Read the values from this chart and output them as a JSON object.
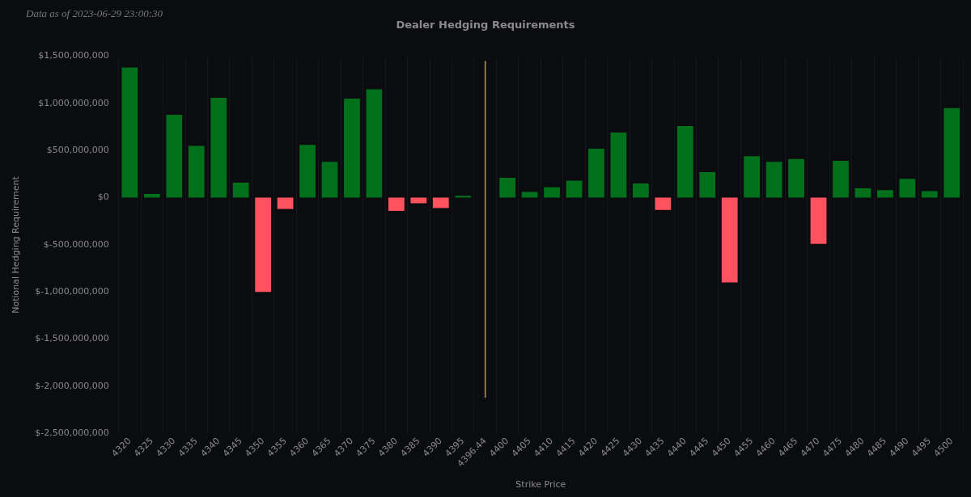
{
  "chart_data": {
    "type": "bar",
    "title": "Dealer Hedging Requirements",
    "xlabel": "Strike Price",
    "ylabel": "Notional Hedging Requirement",
    "annotations": [
      "Data as of 2023-06-29 23:00:30"
    ],
    "categories": [
      "4320",
      "4325",
      "4330",
      "4335",
      "4340",
      "4345",
      "4350",
      "4355",
      "4360",
      "4365",
      "4370",
      "4375",
      "4380",
      "4385",
      "4390",
      "4395",
      "4396.44",
      "4400",
      "4405",
      "4410",
      "4415",
      "4420",
      "4425",
      "4430",
      "4435",
      "4440",
      "4445",
      "4450",
      "4455",
      "4460",
      "4465",
      "4470",
      "4475",
      "4480",
      "4485",
      "4490",
      "4495",
      "4500"
    ],
    "values": [
      1380000000,
      40000000,
      880000000,
      550000000,
      1060000000,
      160000000,
      -1000000000,
      -120000000,
      560000000,
      380000000,
      1050000000,
      1150000000,
      -140000000,
      -60000000,
      -110000000,
      20000000,
      null,
      210000000,
      60000000,
      110000000,
      180000000,
      520000000,
      690000000,
      150000000,
      -130000000,
      760000000,
      270000000,
      -900000000,
      440000000,
      380000000,
      410000000,
      -490000000,
      390000000,
      100000000,
      80000000,
      200000000,
      70000000,
      950000000
    ],
    "colors": [
      "#00701a",
      "#00701a",
      "#00701a",
      "#00701a",
      "#00701a",
      "#00701a",
      "#ff525e",
      "#ff525e",
      "#00701a",
      "#00701a",
      "#00701a",
      "#00701a",
      "#ff525e",
      "#ff525e",
      "#ff525e",
      "#00701a",
      "#00701a",
      "#00701a",
      "#00701a",
      "#00701a",
      "#00701a",
      "#00701a",
      "#00701a",
      "#00701a",
      "#ff525e",
      "#00701a",
      "#00701a",
      "#ff525e",
      "#00701a",
      "#00701a",
      "#00701a",
      "#ff525e",
      "#00701a",
      "#00701a",
      "#00701a",
      "#00701a",
      "#00701a",
      "#00701a"
    ],
    "ylim": [
      -2500000000,
      1500000000
    ],
    "yticks": [
      {
        "value": -2500000000,
        "label": "$-2,500,000,000"
      },
      {
        "value": -2000000000,
        "label": "$-2,000,000,000"
      },
      {
        "value": -1500000000,
        "label": "$-1,500,000,000"
      },
      {
        "value": -1000000000,
        "label": "$-1,000,000,000"
      },
      {
        "value": -500000000,
        "label": "$-500,000,000"
      },
      {
        "value": 0,
        "label": "$0"
      },
      {
        "value": 500000000,
        "label": "$500,000,000"
      },
      {
        "value": 1000000000,
        "label": "$1,000,000,000"
      },
      {
        "value": 1500000000,
        "label": "$1,500,000,000"
      }
    ],
    "ref_lines": [
      {
        "axis": "x",
        "value": "4396.44",
        "color": "#b8985a"
      }
    ],
    "grid": "x",
    "legend": false
  }
}
